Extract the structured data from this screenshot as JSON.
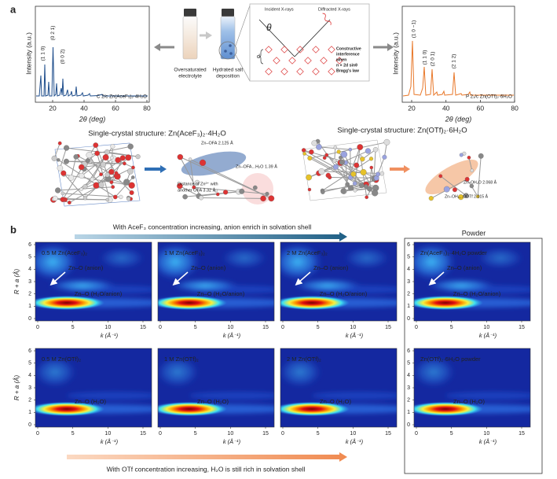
{
  "figure": {
    "panel_a": {
      "label": "a",
      "xrd_left": {
        "y_label": "Intensity (a.u.)",
        "x_label": "2θ (deg)",
        "x_ticks": [
          20,
          40,
          60,
          80
        ],
        "peaks": [
          "(1 1 0)",
          "(0 2 1)",
          "(0 0 2)"
        ],
        "phase": "C 2/c Zn(AceF₃)₂·4H₂O"
      },
      "xrd_right": {
        "y_label": "Intensity (a.u.)",
        "x_label": "2θ (deg)",
        "x_ticks": [
          20,
          40,
          60,
          80
        ],
        "peaks": [
          "(1 0 −1)",
          "(1 1 0)",
          "(2 0 1)",
          "(2 1 2)"
        ],
        "phase": "P 2₁/c Zn(OTf)₂·6H₂O"
      },
      "vials": [
        [
          "Oversaturated",
          "electrolyte"
        ],
        [
          "Hydrated salt",
          "deposition"
        ]
      ],
      "bragg": {
        "incident": "Incident X-rays",
        "diffracted": "Diffracted X-rays",
        "theta": "θ",
        "d": "d",
        "note": [
          "Constructive",
          "interference",
          "when",
          "n × 2d sinθ",
          "Bragg's law"
        ]
      },
      "structures": [
        {
          "title": "Single-crystal structure:  Zn(AceF₃)₂·4H₂O",
          "notes": [
            "Zn–OFA 2.125 Å",
            "Zn–OFA...H₂O 1.39 Å",
            "Distance of Zn²⁺ with",
            "another OFA 3.32 Å"
          ]
        },
        {
          "title": "Single-crystal structure: Zn(OTf)₂·6H₂O",
          "notes": [
            "Zn–OH₂O 2.068 Å",
            "Zn–OH₂...OOTf 2.015 Å"
          ]
        }
      ]
    },
    "panel_b": {
      "label": "b",
      "top_arrow": "With AceF₃ concentration increasing, anion enrich in solvation shell",
      "bottom_arrow": "With OTf concentration increasing, H₂O is still rich in solvation shell",
      "powder_title": "Powder",
      "y_label": "R + a (Å)",
      "x_label": "k (Å⁻¹)",
      "y_ticks": [
        0,
        1,
        2,
        3,
        4,
        5,
        6
      ],
      "x_ticks": [
        0,
        5,
        10,
        15
      ],
      "rows": [
        {
          "panels": [
            {
              "label": "0.5 M Zn(AceF₃)₂",
              "features": [
                "Zn–O (anion)",
                "Zn–O (H₂O/anion)"
              ]
            },
            {
              "label": "1 M Zn(AceF₃)₂",
              "features": [
                "Zn–O (anion)",
                "Zn–O (H₂O/anion)"
              ]
            },
            {
              "label": "2 M Zn(AceF₃)₂",
              "features": [
                "Zn–O (anion)",
                "Zn–O (H₂O/anion)"
              ]
            },
            {
              "label": "Zn(AceF₃)₂·4H₂O powder",
              "features": [
                "Zn–O (anion)",
                "Zn–O (H₂O/anion)"
              ]
            }
          ]
        },
        {
          "panels": [
            {
              "label": "0.5 M Zn(OTf)₂",
              "features": [
                "Zn–O (H₂O)"
              ]
            },
            {
              "label": "1 M Zn(OTf)₂",
              "features": [
                "Zn–O (H₂O)"
              ]
            },
            {
              "label": "2 M Zn(OTf)₂",
              "features": [
                "Zn–O (H₂O)"
              ]
            },
            {
              "label": "Zn(OTf)₂·6H₂O powder",
              "features": [
                "Zn–O (H₂O)"
              ]
            }
          ]
        }
      ]
    }
  }
}
